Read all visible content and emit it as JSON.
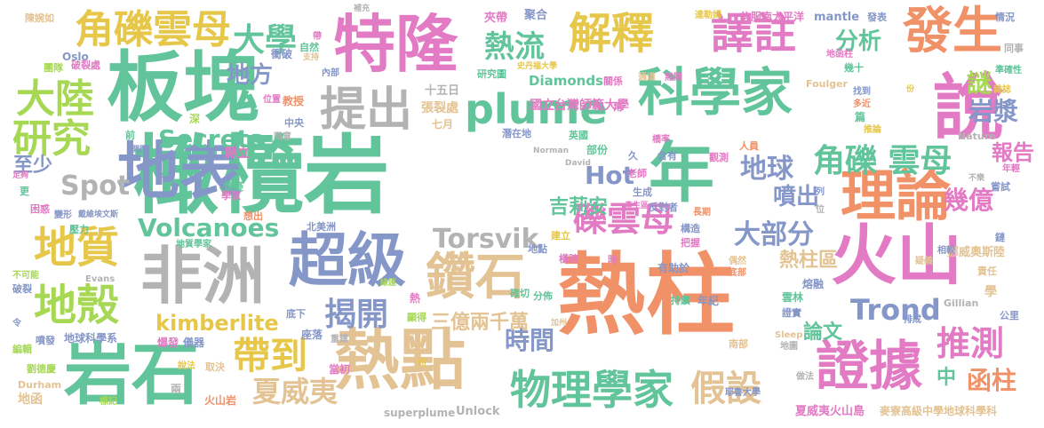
{
  "palette": {
    "pink": "#e27ac4",
    "yellow": "#e6c74a",
    "green": "#62c49a",
    "orange": "#f09168",
    "blue": "#8596c8",
    "lime": "#a6d854",
    "tan": "#e3c394",
    "gray": "#b3b3b3"
  },
  "words": [
    {
      "text": "橄欖岩",
      "color": "green"
    },
    {
      "text": "熱柱",
      "color": "orange"
    },
    {
      "text": "板塊",
      "color": "green"
    },
    {
      "text": "特隆",
      "color": "pink"
    },
    {
      "text": "地表",
      "color": "blue"
    },
    {
      "text": "岩石",
      "color": "green"
    },
    {
      "text": "熱點",
      "color": "tan"
    },
    {
      "text": "火山",
      "color": "pink"
    },
    {
      "text": "非洲",
      "color": "gray"
    },
    {
      "text": "說",
      "color": "pink"
    },
    {
      "text": "年",
      "color": "green"
    },
    {
      "text": "超級",
      "color": "blue"
    },
    {
      "text": "科學家",
      "color": "green"
    },
    {
      "text": "理論",
      "color": "orange"
    },
    {
      "text": "證據",
      "color": "pink"
    },
    {
      "text": "鑽石",
      "color": "tan"
    },
    {
      "text": "地質",
      "color": "yellow"
    },
    {
      "text": "解釋",
      "color": "yellow"
    },
    {
      "text": "譯註",
      "color": "pink"
    },
    {
      "text": "發生",
      "color": "orange"
    },
    {
      "text": "提出",
      "color": "gray"
    },
    {
      "text": "plume",
      "color": "green"
    },
    {
      "text": "地殼",
      "color": "lime"
    },
    {
      "text": "大陸",
      "color": "lime"
    },
    {
      "text": "物理學家",
      "color": "green"
    },
    {
      "text": "角礫雲母",
      "color": "yellow"
    },
    {
      "text": "研究",
      "color": "lime"
    },
    {
      "text": "帶到",
      "color": "yellow"
    },
    {
      "text": "推測",
      "color": "pink"
    },
    {
      "text": "假設",
      "color": "tan"
    },
    {
      "text": "礫雲母",
      "color": "pink"
    },
    {
      "text": "角礫 雲母",
      "color": "green"
    },
    {
      "text": "揭開",
      "color": "blue"
    },
    {
      "text": "夏威夷",
      "color": "tan"
    },
    {
      "text": "Volcanoes",
      "color": "green"
    },
    {
      "text": "Torsvik",
      "color": "gray"
    },
    {
      "text": "Secrets",
      "color": "green"
    },
    {
      "text": "大學",
      "color": "green"
    },
    {
      "text": "熱流",
      "color": "green"
    },
    {
      "text": "Hot",
      "color": "blue"
    },
    {
      "text": "Spot",
      "color": "gray"
    },
    {
      "text": "地球",
      "color": "blue"
    },
    {
      "text": "kimberlite",
      "color": "yellow"
    },
    {
      "text": "Trond",
      "color": "blue"
    },
    {
      "text": "大部分",
      "color": "blue"
    },
    {
      "text": "函柱",
      "color": "orange"
    },
    {
      "text": "岩漿",
      "color": "blue"
    },
    {
      "text": "地方",
      "color": "blue"
    },
    {
      "text": "分析",
      "color": "green"
    },
    {
      "text": "時間",
      "color": "blue"
    },
    {
      "text": "謎",
      "color": "lime"
    },
    {
      "text": "噴出",
      "color": "blue"
    },
    {
      "text": "幾億",
      "color": "pink"
    },
    {
      "text": "吉莉安",
      "color": "green"
    },
    {
      "text": "報告",
      "color": "pink"
    },
    {
      "text": "論文",
      "color": "green"
    },
    {
      "text": "至少",
      "color": "blue"
    },
    {
      "text": "三億兩千萬",
      "color": "tan"
    },
    {
      "text": "熱柱區",
      "color": "tan"
    },
    {
      "text": "中",
      "color": "green"
    },
    {
      "text": "十五日",
      "color": "gray"
    },
    {
      "text": "張裂處",
      "color": "tan"
    },
    {
      "text": "國立台灣師範大學",
      "color": "pink"
    },
    {
      "text": "Diamonds",
      "color": "green"
    },
    {
      "text": "夏威夷火山島",
      "color": "pink"
    },
    {
      "text": "麥寮高級中學地球科學科",
      "color": "tan"
    },
    {
      "text": "地球科學系",
      "color": "blue"
    },
    {
      "text": "superplume",
      "color": "gray"
    },
    {
      "text": "Unlock",
      "color": "gray"
    },
    {
      "text": "mantle",
      "color": "blue"
    },
    {
      "text": "信服南太平洋",
      "color": "pink"
    },
    {
      "text": "Oslo",
      "color": "blue"
    },
    {
      "text": "Nature",
      "color": "gray"
    },
    {
      "text": "Evans",
      "color": "gray"
    },
    {
      "text": "Gillian",
      "color": "gray"
    },
    {
      "text": "Durham",
      "color": "tan"
    },
    {
      "text": "David",
      "color": "gray"
    },
    {
      "text": "Norman",
      "color": "gray"
    },
    {
      "text": "Foulger",
      "color": "tan"
    },
    {
      "text": "Sleep",
      "color": "tan"
    },
    {
      "text": "挪威奧斯陸",
      "color": "tan"
    },
    {
      "text": "火山岩",
      "color": "orange"
    },
    {
      "text": "南部",
      "color": "tan"
    },
    {
      "text": "地函",
      "color": "tan"
    },
    {
      "text": "陳婉如",
      "color": "tan"
    },
    {
      "text": "破裂處",
      "color": "pink"
    },
    {
      "text": "團隊",
      "color": "lime"
    },
    {
      "text": "壓力",
      "color": "green"
    },
    {
      "text": "不可能",
      "color": "lime"
    },
    {
      "text": "破裂",
      "color": "blue"
    },
    {
      "text": "噴發",
      "color": "blue"
    },
    {
      "text": "編輯",
      "color": "lime"
    },
    {
      "text": "劉德慶",
      "color": "lime"
    },
    {
      "text": "變形",
      "color": "blue"
    },
    {
      "text": "戴維埃文斯",
      "color": "blue"
    },
    {
      "text": "困惑",
      "color": "pink"
    },
    {
      "text": "更",
      "color": "green"
    },
    {
      "text": "令",
      "color": "blue"
    },
    {
      "text": "懷疑",
      "color": "green"
    },
    {
      "text": "縣立",
      "color": "pink"
    },
    {
      "text": "學家",
      "color": "pink"
    },
    {
      "text": "想出",
      "color": "orange"
    },
    {
      "text": "地質學家",
      "color": "green"
    },
    {
      "text": "北美洲",
      "color": "blue"
    },
    {
      "text": "綠匯",
      "color": "lime"
    },
    {
      "text": "底下",
      "color": "blue"
    },
    {
      "text": "座落",
      "color": "blue"
    },
    {
      "text": "爆發",
      "color": "pink"
    },
    {
      "text": "儀器",
      "color": "blue"
    },
    {
      "text": "取決",
      "color": "tan"
    },
    {
      "text": "當初",
      "color": "pink"
    },
    {
      "text": "重建",
      "color": "gray"
    },
    {
      "text": "短",
      "color": "yellow"
    },
    {
      "text": "兩",
      "color": "gray"
    },
    {
      "text": "顯得",
      "color": "lime"
    },
    {
      "text": "熱",
      "color": "pink"
    },
    {
      "text": "說法",
      "color": "yellow"
    },
    {
      "text": "標記",
      "color": "lime"
    },
    {
      "text": "確切",
      "color": "green"
    },
    {
      "text": "分佈",
      "color": "green"
    },
    {
      "text": "加州",
      "color": "tan"
    },
    {
      "text": "地點",
      "color": "blue"
    },
    {
      "text": "建立",
      "color": "yellow"
    },
    {
      "text": "橫跨",
      "color": "pink"
    },
    {
      "text": "時",
      "color": "pink"
    },
    {
      "text": "有助於",
      "color": "blue"
    },
    {
      "text": "年紀",
      "color": "blue"
    },
    {
      "text": "偶然",
      "color": "tan"
    },
    {
      "text": "底部",
      "color": "orange"
    },
    {
      "text": "持續",
      "color": "green"
    },
    {
      "text": "熔融",
      "color": "blue"
    },
    {
      "text": "雲林",
      "color": "green"
    },
    {
      "text": "證實",
      "color": "blue"
    },
    {
      "text": "排成",
      "color": "blue"
    },
    {
      "text": "責任",
      "color": "tan"
    },
    {
      "text": "學",
      "color": "tan"
    },
    {
      "text": "公里",
      "color": "blue"
    },
    {
      "text": "地圖",
      "color": "gray"
    },
    {
      "text": "耶魯大學",
      "color": "blue"
    },
    {
      "text": "做法",
      "color": "gray"
    },
    {
      "text": "把握",
      "color": "pink"
    },
    {
      "text": "長期",
      "color": "orange"
    },
    {
      "text": "構造",
      "color": "blue"
    },
    {
      "text": "反對者",
      "color": "blue"
    },
    {
      "text": "老師",
      "color": "pink"
    },
    {
      "text": "產生區",
      "color": "pink"
    },
    {
      "text": "生成",
      "color": "blue"
    },
    {
      "text": "久",
      "color": "blue"
    },
    {
      "text": "觀測",
      "color": "pink"
    },
    {
      "text": "含有",
      "color": "blue"
    },
    {
      "text": "人員",
      "color": "orange"
    },
    {
      "text": "列",
      "color": "blue"
    },
    {
      "text": "位",
      "color": "gray"
    },
    {
      "text": "不樂",
      "color": "gray"
    },
    {
      "text": "嘗試",
      "color": "blue"
    },
    {
      "text": "鏈",
      "color": "blue"
    },
    {
      "text": "相較",
      "color": "blue"
    },
    {
      "text": "疑義",
      "color": "tan"
    },
    {
      "text": "年輕",
      "color": "pink"
    },
    {
      "text": "英國",
      "color": "green"
    },
    {
      "text": "部份",
      "color": "green"
    },
    {
      "text": "橋率",
      "color": "pink"
    },
    {
      "text": "七月",
      "color": "tan"
    },
    {
      "text": "潛在地",
      "color": "blue"
    },
    {
      "text": "角",
      "color": "pink"
    },
    {
      "text": "關係",
      "color": "pink"
    },
    {
      "text": "通道",
      "color": "tan"
    },
    {
      "text": "無關",
      "color": "pink"
    },
    {
      "text": "史丹福大學",
      "color": "yellow"
    },
    {
      "text": "研究圖",
      "color": "green"
    },
    {
      "text": "夾帶",
      "color": "pink"
    },
    {
      "text": "聚合",
      "color": "blue"
    },
    {
      "text": "補充",
      "color": "gray"
    },
    {
      "text": "達勒姆",
      "color": "yellow"
    },
    {
      "text": "發表",
      "color": "blue"
    },
    {
      "text": "情況",
      "color": "blue"
    },
    {
      "text": "同事",
      "color": "gray"
    },
    {
      "text": "準確性",
      "color": "green"
    },
    {
      "text": "雜誌",
      "color": "yellow"
    },
    {
      "text": "多近",
      "color": "orange"
    },
    {
      "text": "找到",
      "color": "blue"
    },
    {
      "text": "幾十",
      "color": "green"
    },
    {
      "text": "份",
      "color": "yellow"
    },
    {
      "text": "地函柱",
      "color": "pink"
    },
    {
      "text": "篇",
      "color": "green"
    },
    {
      "text": "推論",
      "color": "yellow"
    },
    {
      "text": "衝破",
      "color": "blue"
    },
    {
      "text": "教授",
      "color": "orange"
    },
    {
      "text": "自然",
      "color": "green"
    },
    {
      "text": "支持",
      "color": "tan"
    },
    {
      "text": "帶",
      "color": "pink"
    },
    {
      "text": "內部",
      "color": "blue"
    },
    {
      "text": "位置",
      "color": "pink"
    },
    {
      "text": "深",
      "color": "lime"
    },
    {
      "text": "中央",
      "color": "blue"
    },
    {
      "text": "同意",
      "color": "gray"
    },
    {
      "text": "前",
      "color": "green"
    },
    {
      "text": "開門",
      "color": "blue"
    },
    {
      "text": "足夠",
      "color": "pink"
    }
  ]
}
